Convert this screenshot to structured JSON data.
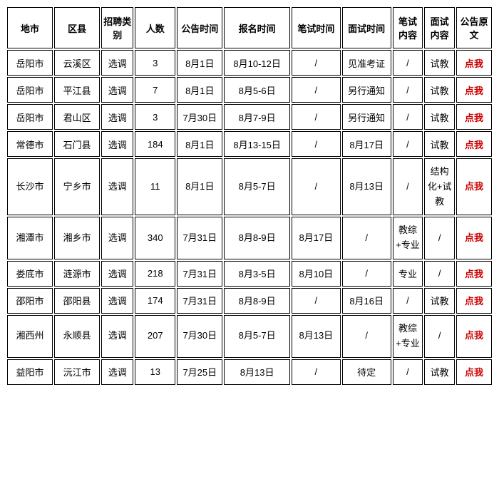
{
  "headers": {
    "city": "地市",
    "county": "区县",
    "type": "招聘类别",
    "count": "人数",
    "announce_time": "公告时间",
    "signup_time": "报名时间",
    "written_time": "笔试时间",
    "interview_time": "面试时间",
    "written_content": "笔试内容",
    "interview_content": "面试内容",
    "source": "公告原文"
  },
  "rows": [
    {
      "city": "岳阳市",
      "county": "云溪区",
      "type": "选调",
      "count": "3",
      "announce_time": "8月1日",
      "signup_time": "8月10-12日",
      "written_time": "/",
      "interview_time": "见准考证",
      "written_content": "/",
      "interview_content": "试教",
      "source": "点我"
    },
    {
      "city": "岳阳市",
      "county": "平江县",
      "type": "选调",
      "count": "7",
      "announce_time": "8月1日",
      "signup_time": "8月5-6日",
      "written_time": "/",
      "interview_time": "另行通知",
      "written_content": "/",
      "interview_content": "试教",
      "source": "点我"
    },
    {
      "city": "岳阳市",
      "county": "君山区",
      "type": "选调",
      "count": "3",
      "announce_time": "7月30日",
      "signup_time": "8月7-9日",
      "written_time": "/",
      "interview_time": "另行通知",
      "written_content": "/",
      "interview_content": "试教",
      "source": "点我"
    },
    {
      "city": "常德市",
      "county": "石门县",
      "type": "选调",
      "count": "184",
      "announce_time": "8月1日",
      "signup_time": "8月13-15日",
      "written_time": "/",
      "interview_time": "8月17日",
      "written_content": "/",
      "interview_content": "试教",
      "source": "点我"
    },
    {
      "city": "长沙市",
      "county": "宁乡市",
      "type": "选调",
      "count": "11",
      "announce_time": "8月1日",
      "signup_time": "8月5-7日",
      "written_time": "/",
      "interview_time": "8月13日",
      "written_content": "/",
      "interview_content": "结构化+试教",
      "source": "点我",
      "tall": true
    },
    {
      "city": "湘潭市",
      "county": "湘乡市",
      "type": "选调",
      "count": "340",
      "announce_time": "7月31日",
      "signup_time": "8月8-9日",
      "written_time": "8月17日",
      "interview_time": "/",
      "written_content": "教综+专业",
      "interview_content": "/",
      "source": "点我",
      "tall": true
    },
    {
      "city": "娄底市",
      "county": "涟源市",
      "type": "选调",
      "count": "218",
      "announce_time": "7月31日",
      "signup_time": "8月3-5日",
      "written_time": "8月10日",
      "interview_time": "/",
      "written_content": "专业",
      "interview_content": "/",
      "source": "点我"
    },
    {
      "city": "邵阳市",
      "county": "邵阳县",
      "type": "选调",
      "count": "174",
      "announce_time": "7月31日",
      "signup_time": "8月8-9日",
      "written_time": "/",
      "interview_time": "8月16日",
      "written_content": "/",
      "interview_content": "试教",
      "source": "点我"
    },
    {
      "city": "湘西州",
      "county": "永顺县",
      "type": "选调",
      "count": "207",
      "announce_time": "7月30日",
      "signup_time": "8月5-7日",
      "written_time": "8月13日",
      "interview_time": "/",
      "written_content": "教综+专业",
      "interview_content": "/",
      "source": "点我",
      "tall": true
    },
    {
      "city": "益阳市",
      "county": "沅江市",
      "type": "选调",
      "count": "13",
      "announce_time": "7月25日",
      "signup_time": "8月13日",
      "written_time": "/",
      "interview_time": "待定",
      "written_content": "/",
      "interview_content": "试教",
      "source": "点我"
    }
  ]
}
